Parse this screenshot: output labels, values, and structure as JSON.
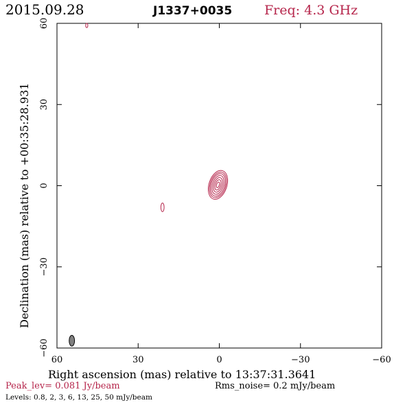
{
  "header": {
    "date": "2015.09.28",
    "source": "J1337+0035",
    "freq": "Freq: 4.3 GHz"
  },
  "footer": {
    "peak": "Peak_lev=  0.081 Jy/beam",
    "rms": "Rms_noise=   0.2 mJy/beam",
    "levels": "Levels: 0.8,   2,   3,   6,  13,  25,  50 mJy/beam"
  },
  "colors": {
    "accent": "#b5244a",
    "axis": "#000000",
    "beam": "#808080"
  },
  "chart_data": {
    "type": "contour",
    "xlabel": "Right ascension (mas) relative to 13:37:31.3641",
    "ylabel": "Declination (mas) relative to +00:35:28.931",
    "xlim": [
      60,
      -60
    ],
    "ylim": [
      -60,
      60
    ],
    "x_ticks": [
      60,
      30,
      0,
      -30,
      -60
    ],
    "x_tick_labels": [
      "60",
      "30",
      "0",
      "−30",
      "−60"
    ],
    "y_ticks": [
      -60,
      -30,
      0,
      30,
      60
    ],
    "y_tick_labels": [
      "−60",
      "−30",
      "0",
      "30",
      "60"
    ],
    "contour_levels_mJy": [
      0.8,
      2,
      3,
      6,
      13,
      25,
      50
    ],
    "peak_Jy_per_beam": 0.081,
    "rms_mJy_per_beam": 0.2,
    "main_component": {
      "center": [
        0.5,
        0.3
      ],
      "contours": [
        {
          "rx": 3.3,
          "ry": 5.5
        },
        {
          "rx": 2.9,
          "ry": 4.9
        },
        {
          "rx": 2.5,
          "ry": 4.3
        },
        {
          "rx": 2.0,
          "ry": 3.6
        },
        {
          "rx": 1.5,
          "ry": 2.8
        },
        {
          "rx": 1.0,
          "ry": 2.0
        },
        {
          "rx": 0.5,
          "ry": 1.1
        }
      ],
      "tilt_deg": 18
    },
    "minor_components": [
      {
        "center": [
          21,
          -8
        ],
        "rx": 0.6,
        "ry": 1.6
      },
      {
        "center": [
          49,
          59.2
        ],
        "rx": 0.4,
        "ry": 0.8
      }
    ],
    "beam": {
      "center": [
        54.5,
        -57.3
      ],
      "rx": 1.0,
      "ry": 2.0
    }
  }
}
